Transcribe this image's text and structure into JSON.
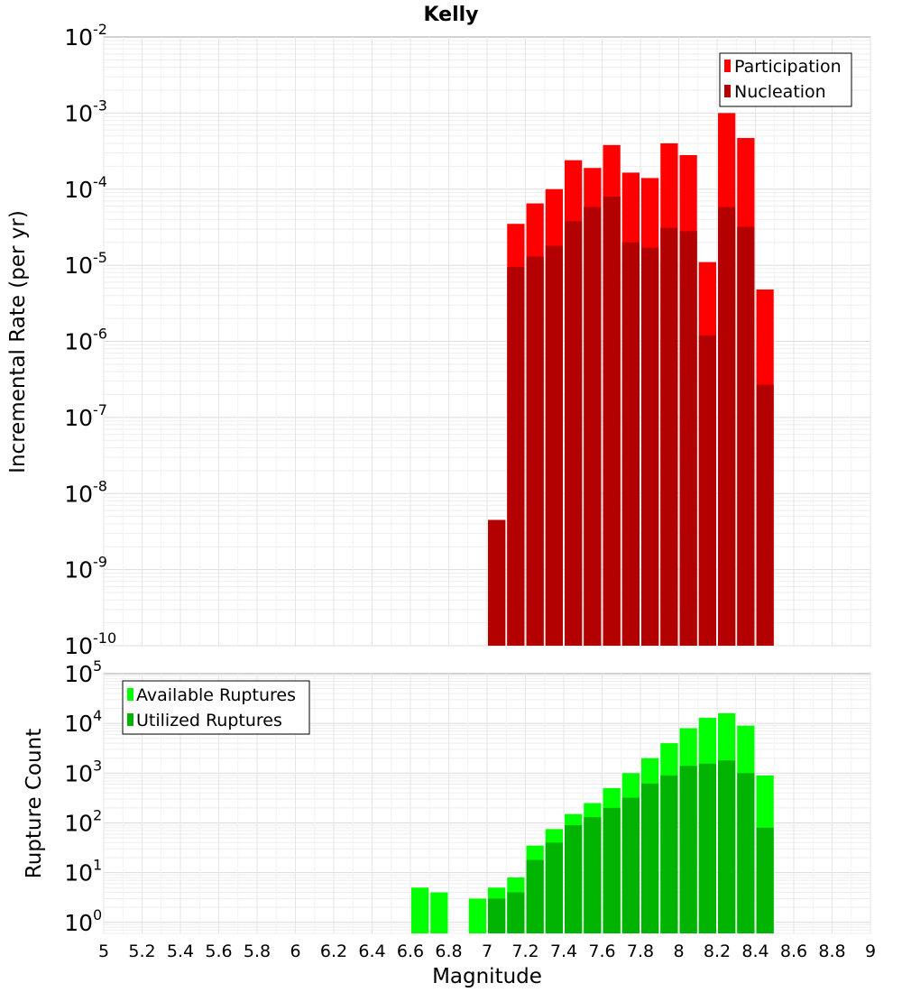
{
  "chart_data": [
    {
      "type": "bar",
      "title": "Kelly",
      "xlabel": "Magnitude",
      "ylabel": "Incremental Rate (per yr)",
      "yscale": "log",
      "xlim": [
        5,
        9
      ],
      "ylim": [
        1e-10,
        0.01
      ],
      "bin_width": 0.1,
      "legend_position": "top-right",
      "y_ticks": [
        {
          "base": "10",
          "exp": "-10",
          "value": 1e-10
        },
        {
          "base": "10",
          "exp": "-9",
          "value": 1e-09
        },
        {
          "base": "10",
          "exp": "-8",
          "value": 1e-08
        },
        {
          "base": "10",
          "exp": "-7",
          "value": 1e-07
        },
        {
          "base": "10",
          "exp": "-6",
          "value": 1e-06
        },
        {
          "base": "10",
          "exp": "-5",
          "value": 1e-05
        },
        {
          "base": "10",
          "exp": "-4",
          "value": 0.0001
        },
        {
          "base": "10",
          "exp": "-3",
          "value": 0.001
        },
        {
          "base": "10",
          "exp": "-2",
          "value": 0.01
        }
      ],
      "series": [
        {
          "name": "Participation",
          "color": "#ff0000",
          "x": [
            7.05,
            7.15,
            7.25,
            7.35,
            7.45,
            7.55,
            7.65,
            7.75,
            7.85,
            7.95,
            8.05,
            8.15,
            8.25,
            8.35,
            8.45
          ],
          "values": [
            4.5e-09,
            3.5e-05,
            6.5e-05,
            0.0001,
            0.00024,
            0.00019,
            0.00038,
            0.000165,
            0.00014,
            0.0004,
            0.00028,
            1.1e-05,
            0.001,
            0.00047,
            4.8e-06
          ]
        },
        {
          "name": "Nucleation",
          "color": "#b30000",
          "x": [
            7.05,
            7.15,
            7.25,
            7.35,
            7.45,
            7.55,
            7.65,
            7.75,
            7.85,
            7.95,
            8.05,
            8.15,
            8.25,
            8.35,
            8.45
          ],
          "values": [
            4.5e-09,
            9.5e-06,
            1.3e-05,
            1.8e-05,
            3.8e-05,
            5.8e-05,
            8e-05,
            2e-05,
            1.7e-05,
            3.1e-05,
            2.8e-05,
            1.2e-06,
            5.8e-05,
            3.2e-05,
            2.7e-07
          ]
        }
      ]
    },
    {
      "type": "bar",
      "title": "",
      "xlabel": "Magnitude",
      "ylabel": "Rupture Count",
      "yscale": "log",
      "xlim": [
        5,
        9
      ],
      "ylim": [
        0.6,
        100000.0
      ],
      "bin_width": 0.1,
      "legend_position": "top-left",
      "y_ticks": [
        {
          "base": "10",
          "exp": "0",
          "value": 1
        },
        {
          "base": "10",
          "exp": "1",
          "value": 10
        },
        {
          "base": "10",
          "exp": "2",
          "value": 100
        },
        {
          "base": "10",
          "exp": "3",
          "value": 1000
        },
        {
          "base": "10",
          "exp": "4",
          "value": 10000
        },
        {
          "base": "10",
          "exp": "5",
          "value": 100000
        }
      ],
      "series": [
        {
          "name": "Available Ruptures",
          "color": "#00ff00",
          "x": [
            6.65,
            6.75,
            6.95,
            7.05,
            7.15,
            7.25,
            7.35,
            7.45,
            7.55,
            7.65,
            7.75,
            7.85,
            7.95,
            8.05,
            8.15,
            8.25,
            8.35,
            8.45
          ],
          "values": [
            5,
            4,
            3,
            5,
            8,
            35,
            75,
            150,
            250,
            500,
            1000,
            2000,
            4000,
            8000,
            13000,
            16000,
            9000,
            900
          ]
        },
        {
          "name": "Utilized Ruptures",
          "color": "#00b300",
          "x": [
            6.65,
            6.75,
            6.95,
            7.05,
            7.15,
            7.25,
            7.35,
            7.45,
            7.55,
            7.65,
            7.75,
            7.85,
            7.95,
            8.05,
            8.15,
            8.25,
            8.35,
            8.45
          ],
          "values": [
            0,
            0,
            0,
            3,
            4,
            18,
            40,
            90,
            130,
            200,
            320,
            620,
            900,
            1400,
            1550,
            1800,
            1000,
            80
          ]
        }
      ]
    }
  ],
  "x_tick_labels": [
    "5",
    "5.2",
    "5.4",
    "5.6",
    "5.8",
    "6",
    "6.2",
    "6.4",
    "6.6",
    "6.8",
    "7",
    "7.2",
    "7.4",
    "7.6",
    "7.8",
    "8",
    "8.2",
    "8.4",
    "8.6",
    "8.8",
    "9"
  ]
}
